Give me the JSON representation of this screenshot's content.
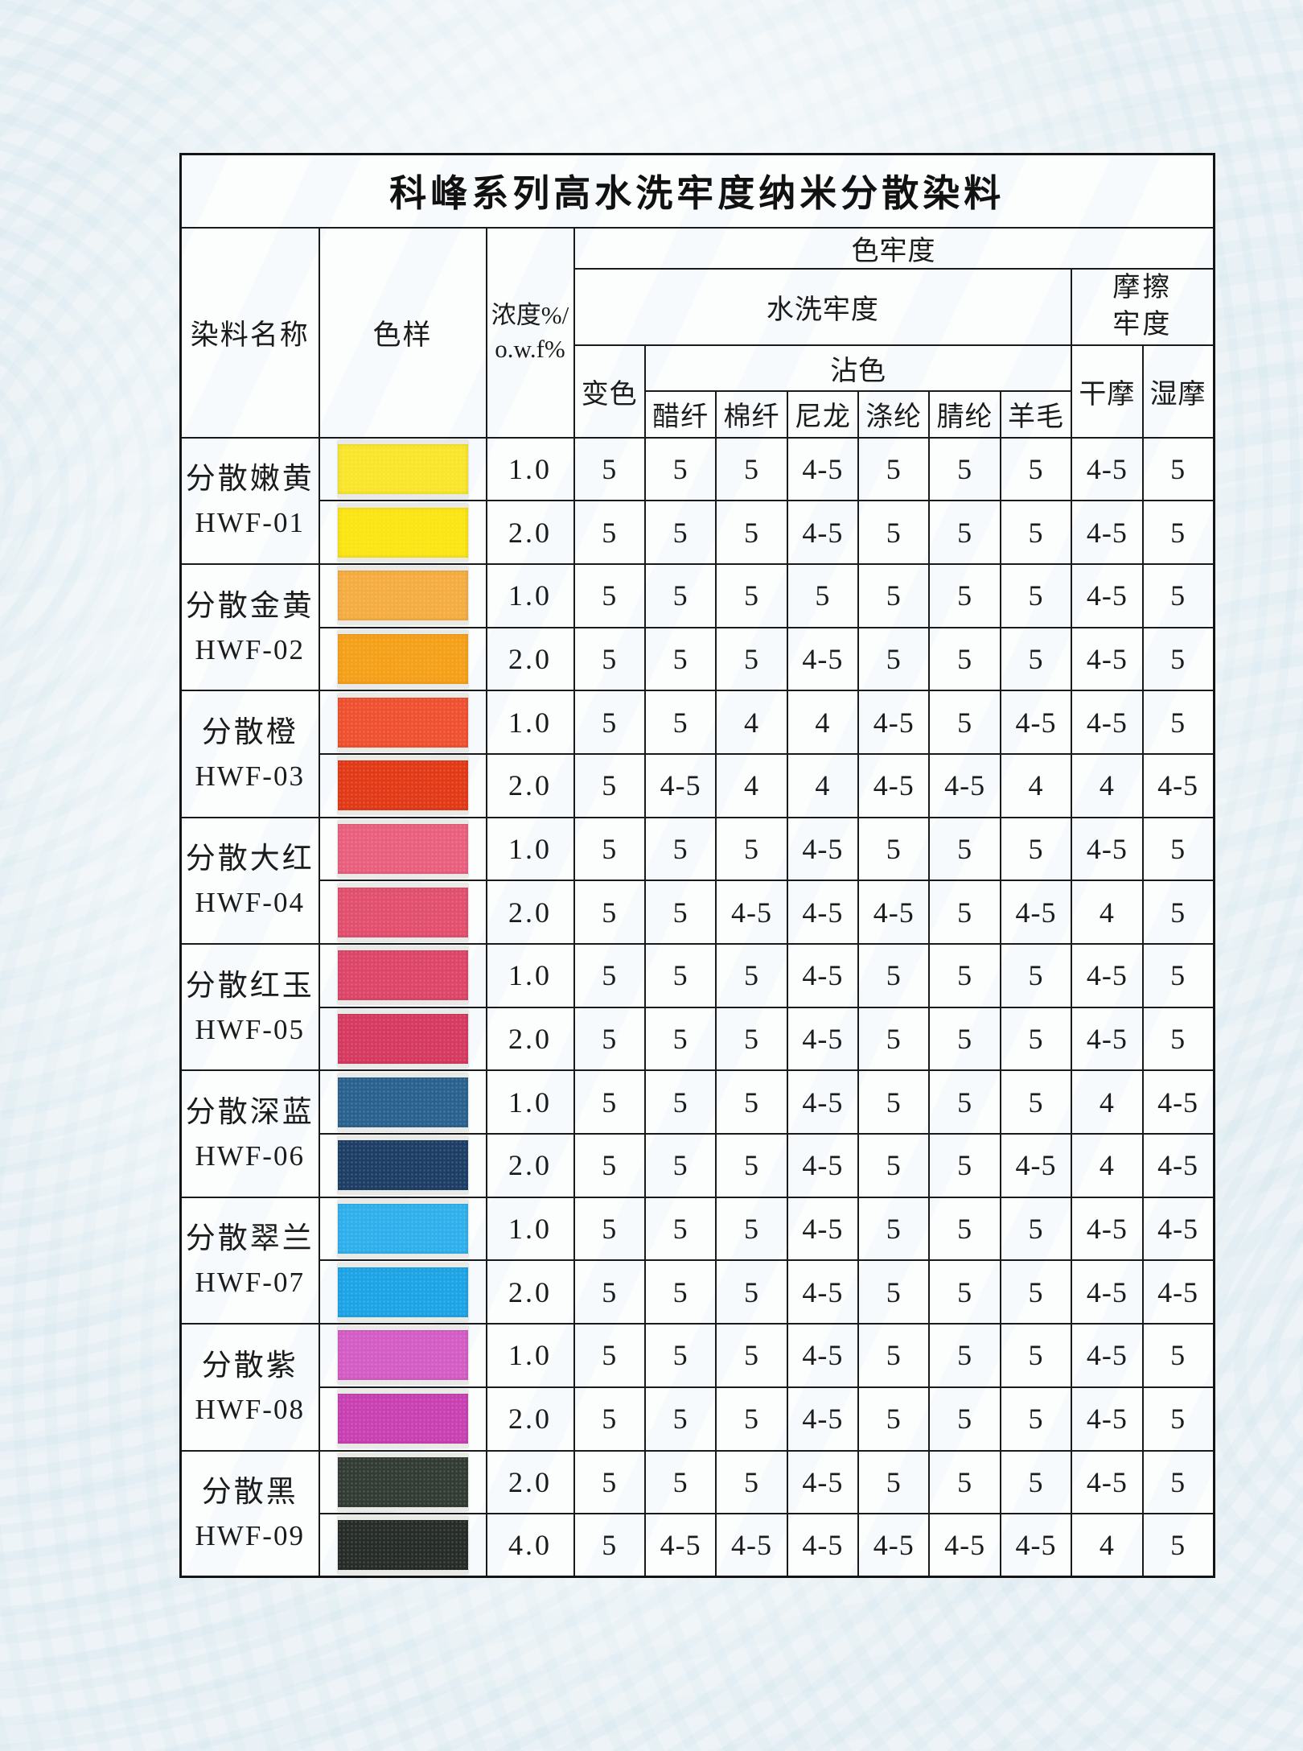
{
  "table": {
    "title": "科峰系列高水洗牢度纳米分散染料",
    "header": {
      "dye_name": "染料名称",
      "color_sample": "色样",
      "concentration_line1": "浓度%/",
      "concentration_line2": "o.w.f%",
      "color_fastness": "色牢度",
      "wash_fastness": "水洗牢度",
      "rub_fastness_line1": "摩擦",
      "rub_fastness_line2": "牢度",
      "color_change": "变色",
      "staining": "沾色",
      "fibers": [
        "醋纤",
        "棉纤",
        "尼龙",
        "涤纶",
        "腈纶",
        "羊毛"
      ],
      "dry_rub": "干摩",
      "wet_rub": "湿摩"
    },
    "rows": [
      {
        "name": "分散嫩黄",
        "code": "HWF-01",
        "entries": [
          {
            "conc": "1.0",
            "swatch": "#f9e62b",
            "values": [
              "5",
              "5",
              "5",
              "4-5",
              "5",
              "5",
              "5",
              "4-5",
              "5"
            ]
          },
          {
            "conc": "2.0",
            "swatch": "#fbe512",
            "values": [
              "5",
              "5",
              "5",
              "4-5",
              "5",
              "5",
              "5",
              "4-5",
              "5"
            ]
          }
        ]
      },
      {
        "name": "分散金黄",
        "code": "HWF-02",
        "entries": [
          {
            "conc": "1.0",
            "swatch": "#f5ad41",
            "values": [
              "5",
              "5",
              "5",
              "5",
              "5",
              "5",
              "5",
              "4-5",
              "5"
            ]
          },
          {
            "conc": "2.0",
            "swatch": "#f5a019",
            "values": [
              "5",
              "5",
              "5",
              "4-5",
              "5",
              "5",
              "5",
              "4-5",
              "5"
            ]
          }
        ]
      },
      {
        "name": "分散橙",
        "code": "HWF-03",
        "entries": [
          {
            "conc": "1.0",
            "swatch": "#ef5130",
            "values": [
              "5",
              "5",
              "4",
              "4",
              "4-5",
              "5",
              "4-5",
              "4-5",
              "5"
            ]
          },
          {
            "conc": "2.0",
            "swatch": "#e23a17",
            "values": [
              "5",
              "4-5",
              "4",
              "4",
              "4-5",
              "4-5",
              "4",
              "4",
              "4-5"
            ]
          }
        ]
      },
      {
        "name": "分散大红",
        "code": "HWF-04",
        "entries": [
          {
            "conc": "1.0",
            "swatch": "#e9607f",
            "values": [
              "5",
              "5",
              "5",
              "4-5",
              "5",
              "5",
              "5",
              "4-5",
              "5"
            ]
          },
          {
            "conc": "2.0",
            "swatch": "#e24f6f",
            "values": [
              "5",
              "5",
              "4-5",
              "4-5",
              "4-5",
              "5",
              "4-5",
              "4",
              "5"
            ]
          }
        ]
      },
      {
        "name": "分散红玉",
        "code": "HWF-05",
        "entries": [
          {
            "conc": "1.0",
            "swatch": "#dd4569",
            "values": [
              "5",
              "5",
              "5",
              "4-5",
              "5",
              "5",
              "5",
              "4-5",
              "5"
            ]
          },
          {
            "conc": "2.0",
            "swatch": "#d63a60",
            "values": [
              "5",
              "5",
              "5",
              "4-5",
              "5",
              "5",
              "5",
              "4-5",
              "5"
            ]
          }
        ]
      },
      {
        "name": "分散深蓝",
        "code": "HWF-06",
        "entries": [
          {
            "conc": "1.0",
            "swatch": "#2a628f",
            "values": [
              "5",
              "5",
              "5",
              "4-5",
              "5",
              "5",
              "5",
              "4",
              "4-5"
            ]
          },
          {
            "conc": "2.0",
            "swatch": "#1d3f66",
            "values": [
              "5",
              "5",
              "5",
              "4-5",
              "5",
              "5",
              "4-5",
              "4",
              "4-5"
            ]
          }
        ]
      },
      {
        "name": "分散翠兰",
        "code": "HWF-07",
        "entries": [
          {
            "conc": "1.0",
            "swatch": "#2fb0ec",
            "values": [
              "5",
              "5",
              "5",
              "4-5",
              "5",
              "5",
              "5",
              "4-5",
              "4-5"
            ]
          },
          {
            "conc": "2.0",
            "swatch": "#1ca4e6",
            "values": [
              "5",
              "5",
              "5",
              "4-5",
              "5",
              "5",
              "5",
              "4-5",
              "4-5"
            ]
          }
        ]
      },
      {
        "name": "分散紫",
        "code": "HWF-08",
        "entries": [
          {
            "conc": "1.0",
            "swatch": "#d45cc5",
            "values": [
              "5",
              "5",
              "5",
              "4-5",
              "5",
              "5",
              "5",
              "4-5",
              "5"
            ]
          },
          {
            "conc": "2.0",
            "swatch": "#c840b2",
            "values": [
              "5",
              "5",
              "5",
              "4-5",
              "5",
              "5",
              "5",
              "4-5",
              "5"
            ]
          }
        ]
      },
      {
        "name": "分散黑",
        "code": "HWF-09",
        "entries": [
          {
            "conc": "2.0",
            "swatch": "#333b35",
            "values": [
              "5",
              "5",
              "5",
              "4-5",
              "5",
              "5",
              "5",
              "4-5",
              "5"
            ]
          },
          {
            "conc": "4.0",
            "swatch": "#262c28",
            "values": [
              "5",
              "4-5",
              "4-5",
              "4-5",
              "4-5",
              "4-5",
              "4-5",
              "4",
              "5"
            ]
          }
        ]
      }
    ]
  }
}
